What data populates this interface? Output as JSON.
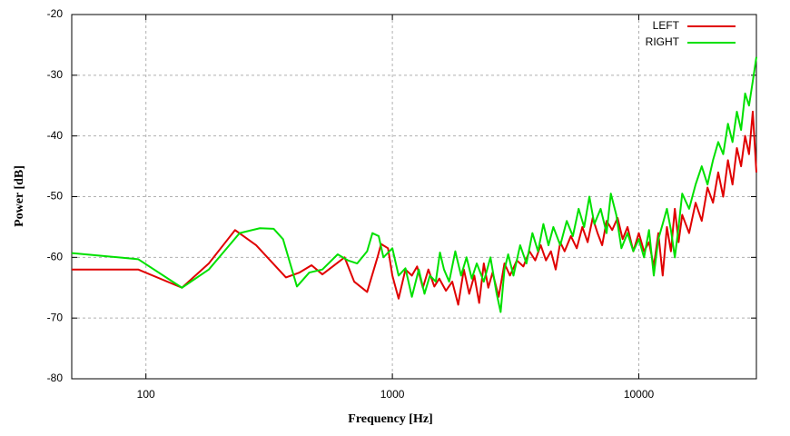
{
  "chart_data": {
    "type": "line",
    "x_label": "Frequency [Hz]",
    "y_label": "Power [dB]",
    "xscale": "log",
    "xlim": [
      50,
      30000
    ],
    "xticks": [
      100,
      1000,
      10000
    ],
    "ylim": [
      -80,
      -20
    ],
    "yticks": [
      -80,
      -70,
      -60,
      -50,
      -40,
      -30,
      -20
    ],
    "grid": true,
    "legend": "top-right",
    "series": [
      {
        "name": "LEFT",
        "color": "#e00000",
        "x": [
          50,
          93,
          140,
          180,
          230,
          280,
          370,
          420,
          470,
          520,
          640,
          700,
          790,
          870,
          900,
          960,
          1000,
          1060,
          1130,
          1200,
          1260,
          1330,
          1400,
          1480,
          1550,
          1650,
          1750,
          1850,
          1950,
          2050,
          2150,
          2250,
          2350,
          2450,
          2550,
          2700,
          2850,
          3000,
          3200,
          3400,
          3600,
          3800,
          4000,
          4200,
          4400,
          4600,
          4800,
          5000,
          5300,
          5600,
          5900,
          6200,
          6500,
          6800,
          7100,
          7400,
          7800,
          8200,
          8600,
          9000,
          9500,
          10000,
          10500,
          11000,
          11500,
          12000,
          12500,
          13000,
          13500,
          14000,
          14500,
          15000,
          16000,
          17000,
          18000,
          19000,
          20000,
          21000,
          22000,
          23000,
          24000,
          25000,
          26000,
          27000,
          28000,
          29000,
          30000
        ],
        "values": [
          -62,
          -62,
          -65,
          -61,
          -55.5,
          -58,
          -63.3,
          -62.5,
          -61.3,
          -62.8,
          -60,
          -64,
          -65.7,
          -60,
          -57.8,
          -58.5,
          -63,
          -66.8,
          -62,
          -63,
          -61.5,
          -65,
          -62,
          -64.8,
          -63.5,
          -65.5,
          -64,
          -67.8,
          -62,
          -66,
          -63,
          -67.5,
          -61,
          -65,
          -62.5,
          -66.5,
          -61,
          -63,
          -60.5,
          -61.5,
          -59,
          -60.5,
          -58,
          -60.5,
          -59,
          -62,
          -57.5,
          -59,
          -56.5,
          -58.5,
          -55,
          -57.5,
          -53.5,
          -56,
          -58,
          -54,
          -55.5,
          -53.5,
          -57,
          -55,
          -59,
          -56,
          -59,
          -57.5,
          -61.5,
          -56,
          -63,
          -55,
          -59,
          -52,
          -57.5,
          -53,
          -56,
          -51,
          -54,
          -48.5,
          -51,
          -46,
          -50,
          -44,
          -48,
          -42,
          -45,
          -40,
          -43,
          -36,
          -46
        ]
      },
      {
        "name": "RIGHT",
        "color": "#00e000",
        "x": [
          50,
          93,
          140,
          180,
          240,
          290,
          330,
          360,
          410,
          460,
          520,
          600,
          660,
          720,
          790,
          830,
          880,
          920,
          1000,
          1060,
          1130,
          1200,
          1280,
          1350,
          1420,
          1500,
          1560,
          1620,
          1700,
          1800,
          1900,
          2000,
          2100,
          2200,
          2350,
          2500,
          2650,
          2750,
          2850,
          2950,
          3100,
          3300,
          3500,
          3700,
          3900,
          4100,
          4300,
          4500,
          4800,
          5100,
          5400,
          5700,
          6000,
          6300,
          6600,
          7000,
          7400,
          7700,
          8100,
          8500,
          9000,
          9500,
          10000,
          10500,
          11000,
          11500,
          12000,
          12500,
          13000,
          13500,
          14000,
          14500,
          15000,
          16000,
          17000,
          18000,
          19000,
          20000,
          21000,
          22000,
          23000,
          24000,
          25000,
          26000,
          27000,
          28000,
          29000,
          30000
        ],
        "values": [
          -59.3,
          -60.3,
          -65,
          -62,
          -56,
          -55.2,
          -55.3,
          -57,
          -64.8,
          -62.5,
          -62,
          -59.5,
          -60.5,
          -61,
          -59,
          -56,
          -56.5,
          -60,
          -58.5,
          -63,
          -61.8,
          -66.5,
          -62,
          -66,
          -63,
          -64,
          -59.2,
          -62,
          -64,
          -59,
          -63,
          -60,
          -63.5,
          -61,
          -64,
          -60,
          -66,
          -69,
          -62,
          -59.5,
          -63,
          -58,
          -61,
          -56,
          -59,
          -54.5,
          -58,
          -55,
          -58,
          -54,
          -56.5,
          -52,
          -55,
          -50,
          -54.5,
          -52,
          -56,
          -49.5,
          -53,
          -58.5,
          -56,
          -59,
          -57,
          -60,
          -55.5,
          -63,
          -57,
          -54.5,
          -52,
          -55.5,
          -60,
          -55,
          -49.5,
          -52,
          -48,
          -45,
          -48,
          -44,
          -41,
          -43,
          -38,
          -41,
          -36,
          -39,
          -33,
          -35,
          -31,
          -27
        ]
      }
    ]
  }
}
